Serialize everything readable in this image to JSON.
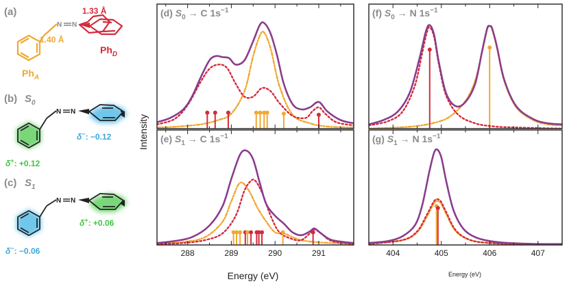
{
  "colors": {
    "total": "#8a3c8c",
    "phD": "#d42a3c",
    "phA": "#f0a830",
    "grey": "#8a8a8a",
    "green_glow": "#4ec94e",
    "green_text": "#3cc83c",
    "blue_glow": "#42b4e6",
    "blue_text": "#3ba7d9"
  },
  "left_panels": {
    "a": {
      "label": "(a)",
      "bond_d": "1.33 Å",
      "bond_a": "1.40 Å",
      "ph_a": "Ph",
      "ph_a_sub": "A",
      "ph_d": "Ph",
      "ph_d_sub": "D"
    },
    "b": {
      "label": "(b)",
      "state": "S",
      "state_sub": "0",
      "charge_minus_sym": "δ",
      "charge_minus_sup": "−",
      "charge_minus_val": ": −0.12",
      "charge_plus_sym": "δ",
      "charge_plus_sup": "+",
      "charge_plus_val": ": +0.12"
    },
    "c": {
      "label": "(c)",
      "state": "S",
      "state_sub": "1",
      "charge_plus_sym": "δ",
      "charge_plus_sup": "+",
      "charge_plus_val": ": +0.06",
      "charge_minus_sym": "δ",
      "charge_minus_sup": "−",
      "charge_minus_val": ": −0.06"
    }
  },
  "chart_data": [
    {
      "panel": "(d)",
      "type": "line",
      "title_parts": [
        "S",
        "0",
        " → C 1s",
        "−1"
      ],
      "x_range": [
        287.3,
        291.8
      ],
      "y_range": [
        0,
        1
      ],
      "series": [
        {
          "role": "total",
          "x": [
            287.3,
            287.6,
            287.9,
            288.1,
            288.3,
            288.5,
            288.65,
            288.8,
            288.95,
            289.1,
            289.3,
            289.5,
            289.65,
            289.75,
            289.9,
            290.05,
            290.2,
            290.4,
            290.6,
            290.8,
            291.0,
            291.2,
            291.5,
            291.8
          ],
          "y": [
            0.06,
            0.1,
            0.18,
            0.3,
            0.48,
            0.64,
            0.68,
            0.67,
            0.66,
            0.6,
            0.64,
            0.82,
            0.97,
            0.99,
            0.89,
            0.68,
            0.42,
            0.23,
            0.18,
            0.2,
            0.25,
            0.16,
            0.08,
            0.05
          ]
        },
        {
          "role": "phD",
          "x": [
            287.3,
            287.7,
            288.0,
            288.3,
            288.5,
            288.7,
            288.9,
            289.1,
            289.3,
            289.5,
            289.7,
            289.9,
            290.1,
            290.4,
            290.7,
            290.85,
            291.0,
            291.15,
            291.4,
            291.8
          ],
          "y": [
            0.04,
            0.09,
            0.22,
            0.44,
            0.56,
            0.6,
            0.57,
            0.42,
            0.3,
            0.3,
            0.38,
            0.35,
            0.24,
            0.12,
            0.1,
            0.16,
            0.2,
            0.14,
            0.06,
            0.03
          ]
        },
        {
          "role": "phA",
          "x": [
            287.3,
            287.8,
            288.3,
            288.7,
            289.0,
            289.3,
            289.5,
            289.65,
            289.75,
            289.9,
            290.1,
            290.4,
            290.8,
            291.2,
            291.8
          ],
          "y": [
            0.01,
            0.02,
            0.04,
            0.08,
            0.14,
            0.35,
            0.68,
            0.87,
            0.9,
            0.75,
            0.4,
            0.13,
            0.05,
            0.02,
            0.01
          ]
        }
      ],
      "sticks": [
        {
          "role": "phD",
          "x": 288.45,
          "h": 0.15
        },
        {
          "role": "phD",
          "x": 288.63,
          "h": 0.15
        },
        {
          "role": "phD",
          "x": 288.93,
          "h": 0.15
        },
        {
          "role": "phA",
          "x": 289.57,
          "h": 0.15
        },
        {
          "role": "phA",
          "x": 289.66,
          "h": 0.15
        },
        {
          "role": "phA",
          "x": 289.75,
          "h": 0.15
        },
        {
          "role": "phA",
          "x": 289.82,
          "h": 0.15
        },
        {
          "role": "phA",
          "x": 290.2,
          "h": 0.14
        },
        {
          "role": "phD",
          "x": 291.0,
          "h": 0.13
        }
      ]
    },
    {
      "panel": "(e)",
      "type": "line",
      "title_parts": [
        "S",
        "1",
        " → C 1s",
        "−1"
      ],
      "x_range": [
        287.3,
        291.8
      ],
      "y_range": [
        0,
        1
      ],
      "xlabel": "Energy (eV)",
      "ticks": [
        "288",
        "289",
        "290",
        "291"
      ],
      "series": [
        {
          "role": "total",
          "x": [
            287.3,
            287.7,
            288.1,
            288.5,
            288.8,
            289.0,
            289.2,
            289.35,
            289.5,
            289.65,
            289.8,
            290.0,
            290.2,
            290.4,
            290.6,
            290.8,
            290.9,
            291.05,
            291.3,
            291.8
          ],
          "y": [
            0.02,
            0.04,
            0.08,
            0.2,
            0.4,
            0.68,
            0.93,
            0.97,
            0.88,
            0.64,
            0.42,
            0.3,
            0.22,
            0.13,
            0.1,
            0.14,
            0.17,
            0.12,
            0.05,
            0.02
          ]
        },
        {
          "role": "phD",
          "x": [
            287.3,
            287.9,
            288.4,
            288.8,
            289.1,
            289.3,
            289.45,
            289.55,
            289.7,
            289.9,
            290.1,
            290.4,
            290.6,
            290.8,
            290.9,
            291.05,
            291.3,
            291.8
          ],
          "y": [
            0.01,
            0.02,
            0.05,
            0.12,
            0.3,
            0.56,
            0.66,
            0.66,
            0.54,
            0.3,
            0.13,
            0.06,
            0.05,
            0.12,
            0.16,
            0.12,
            0.04,
            0.01
          ]
        },
        {
          "role": "phA",
          "x": [
            287.3,
            287.9,
            288.4,
            288.8,
            289.0,
            289.2,
            289.4,
            289.6,
            289.8,
            290.0,
            290.2,
            290.4,
            290.6,
            290.9,
            291.3,
            291.8
          ],
          "y": [
            0.01,
            0.03,
            0.08,
            0.24,
            0.45,
            0.64,
            0.56,
            0.38,
            0.24,
            0.13,
            0.12,
            0.08,
            0.05,
            0.03,
            0.02,
            0.01
          ]
        }
      ],
      "sticks": [
        {
          "role": "phA",
          "x": 289.05,
          "h": 0.13
        },
        {
          "role": "phA",
          "x": 289.12,
          "h": 0.13
        },
        {
          "role": "phA",
          "x": 289.2,
          "h": 0.13
        },
        {
          "role": "phD",
          "x": 289.32,
          "h": 0.13
        },
        {
          "role": "phA",
          "x": 289.37,
          "h": 0.13
        },
        {
          "role": "phD",
          "x": 289.45,
          "h": 0.13
        },
        {
          "role": "phD",
          "x": 289.58,
          "h": 0.13
        },
        {
          "role": "phD",
          "x": 289.63,
          "h": 0.13
        },
        {
          "role": "phD",
          "x": 289.7,
          "h": 0.13
        },
        {
          "role": "phA",
          "x": 290.18,
          "h": 0.13
        },
        {
          "role": "phD",
          "x": 290.87,
          "h": 0.13
        }
      ]
    },
    {
      "panel": "(f)",
      "type": "line",
      "title_parts": [
        "S",
        "0",
        " → N 1s",
        "−1"
      ],
      "x_range": [
        403.5,
        407.5
      ],
      "y_range": [
        0,
        1
      ],
      "series": [
        {
          "role": "total",
          "x": [
            403.5,
            403.8,
            404.1,
            404.35,
            404.55,
            404.68,
            404.76,
            404.85,
            404.95,
            405.1,
            405.3,
            405.5,
            405.7,
            405.85,
            405.95,
            406.0,
            406.05,
            406.15,
            406.3,
            406.55,
            406.9,
            407.2,
            407.5
          ],
          "y": [
            0.04,
            0.08,
            0.16,
            0.34,
            0.66,
            0.91,
            0.97,
            0.88,
            0.62,
            0.33,
            0.21,
            0.25,
            0.42,
            0.74,
            0.94,
            0.96,
            0.94,
            0.77,
            0.46,
            0.21,
            0.09,
            0.05,
            0.04
          ]
        },
        {
          "role": "phD",
          "x": [
            403.5,
            403.9,
            404.2,
            404.45,
            404.6,
            404.7,
            404.76,
            404.85,
            404.95,
            405.1,
            405.35,
            405.7,
            406.1,
            406.6,
            407.5
          ],
          "y": [
            0.03,
            0.07,
            0.16,
            0.4,
            0.7,
            0.9,
            0.95,
            0.86,
            0.6,
            0.31,
            0.13,
            0.05,
            0.02,
            0.01,
            0.0
          ]
        },
        {
          "role": "phA",
          "x": [
            403.5,
            404.4,
            404.9,
            405.2,
            405.5,
            405.7,
            405.85,
            405.95,
            406.0,
            406.05,
            406.15,
            406.3,
            406.55,
            406.9,
            407.2,
            407.5
          ],
          "y": [
            0.0,
            0.02,
            0.06,
            0.12,
            0.26,
            0.45,
            0.73,
            0.93,
            0.96,
            0.93,
            0.76,
            0.45,
            0.2,
            0.08,
            0.04,
            0.03
          ]
        }
      ],
      "sticks": [
        {
          "role": "phD",
          "x": 404.76,
          "h": 0.74
        },
        {
          "role": "phA",
          "x": 406.0,
          "h": 0.76
        }
      ]
    },
    {
      "panel": "(g)",
      "type": "line",
      "title_parts": [
        "S",
        "1",
        " → N 1s",
        "−1"
      ],
      "x_range": [
        403.5,
        407.5
      ],
      "y_range": [
        0,
        1
      ],
      "xlabel": "Energy (eV)",
      "ticks": [
        "404",
        "405",
        "406",
        "407"
      ],
      "series": [
        {
          "role": "total",
          "x": [
            403.5,
            403.9,
            404.2,
            404.45,
            404.6,
            404.75,
            404.85,
            404.92,
            405.0,
            405.1,
            405.25,
            405.45,
            405.7,
            406.0,
            406.4,
            407.0,
            407.5
          ],
          "y": [
            0.02,
            0.04,
            0.09,
            0.2,
            0.4,
            0.75,
            0.95,
            0.98,
            0.9,
            0.66,
            0.36,
            0.17,
            0.08,
            0.04,
            0.02,
            0.01,
            0.01
          ]
        },
        {
          "role": "phD",
          "x": [
            403.5,
            404.2,
            404.5,
            404.7,
            404.85,
            404.93,
            405.0,
            405.1,
            405.3,
            405.6,
            406.0,
            406.5,
            407.5
          ],
          "y": [
            0.01,
            0.05,
            0.14,
            0.31,
            0.45,
            0.47,
            0.44,
            0.34,
            0.15,
            0.05,
            0.02,
            0.01,
            0.0
          ]
        },
        {
          "role": "phA",
          "x": [
            403.5,
            404.2,
            404.5,
            404.7,
            404.85,
            404.93,
            405.0,
            405.1,
            405.3,
            405.6,
            406.0,
            406.5,
            407.5
          ],
          "y": [
            0.01,
            0.05,
            0.13,
            0.29,
            0.43,
            0.45,
            0.42,
            0.32,
            0.14,
            0.05,
            0.02,
            0.01,
            0.0
          ]
        }
      ],
      "sticks": [
        {
          "role": "phA",
          "x": 404.9,
          "h": 0.4
        },
        {
          "role": "phD",
          "x": 404.93,
          "h": 0.38
        }
      ]
    }
  ],
  "axes": {
    "ylabel": "Intensity"
  }
}
